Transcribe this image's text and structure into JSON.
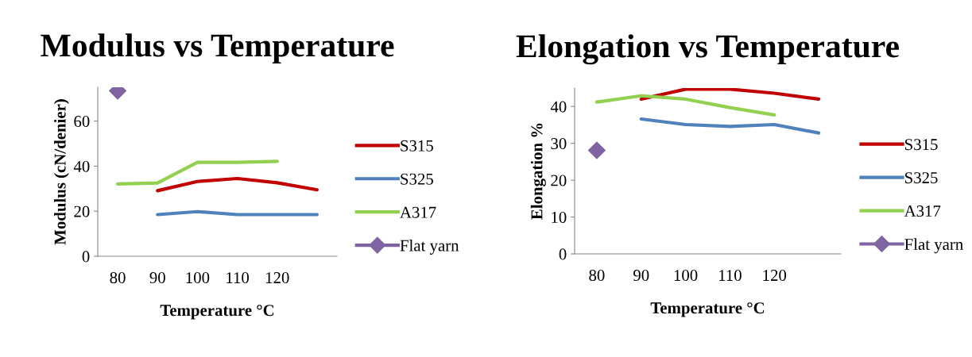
{
  "chart_data": [
    {
      "type": "line",
      "title": "Modulus vs Temperature",
      "xlabel": "Temperature °C",
      "ylabel": "Modulus (cN/denier)",
      "categories": [
        "80",
        "90",
        "100",
        "110",
        "120",
        null
      ],
      "ylim": [
        0,
        75
      ],
      "yticks": [
        0,
        20,
        40,
        60
      ],
      "grid": false,
      "legend": "right",
      "marker": "none",
      "series": [
        {
          "name": "S315",
          "color": "#c00000",
          "values": [
            null,
            29.1,
            33.2,
            34.5,
            32.6,
            29.5
          ]
        },
        {
          "name": "S325",
          "color": "#4f81bd",
          "values": [
            null,
            18.5,
            19.8,
            18.5,
            18.5,
            18.5
          ]
        },
        {
          "name": "A317",
          "color": "#92d050",
          "values": [
            32.1,
            32.5,
            41.7,
            41.7,
            42.1,
            null
          ]
        },
        {
          "name": "Flat yarn",
          "color": "#8064a2",
          "type": "scatter",
          "marker": "diamond",
          "values": [
            73.4,
            null,
            null,
            null,
            null,
            null
          ]
        }
      ]
    },
    {
      "type": "line",
      "title": "Elongation vs Temperature",
      "xlabel": "Temperature °C",
      "ylabel": "Elongation %",
      "categories": [
        "80",
        "90",
        "100",
        "110",
        "120",
        null
      ],
      "ylim": [
        0,
        45
      ],
      "yticks": [
        0,
        10,
        20,
        30,
        40
      ],
      "grid": false,
      "legend": "right",
      "marker": "none",
      "series": [
        {
          "name": "S315",
          "color": "#c00000",
          "values": [
            null,
            42.0,
            44.7,
            44.7,
            43.6,
            42.0
          ]
        },
        {
          "name": "S325",
          "color": "#4f81bd",
          "values": [
            null,
            36.6,
            35.1,
            34.6,
            35.1,
            32.8
          ]
        },
        {
          "name": "A317",
          "color": "#92d050",
          "values": [
            41.2,
            42.9,
            42.0,
            39.7,
            37.7,
            null
          ]
        },
        {
          "name": "Flat yarn",
          "color": "#8064a2",
          "type": "scatter",
          "marker": "diamond",
          "values": [
            28.1,
            null,
            null,
            null,
            null,
            null
          ]
        }
      ]
    }
  ]
}
